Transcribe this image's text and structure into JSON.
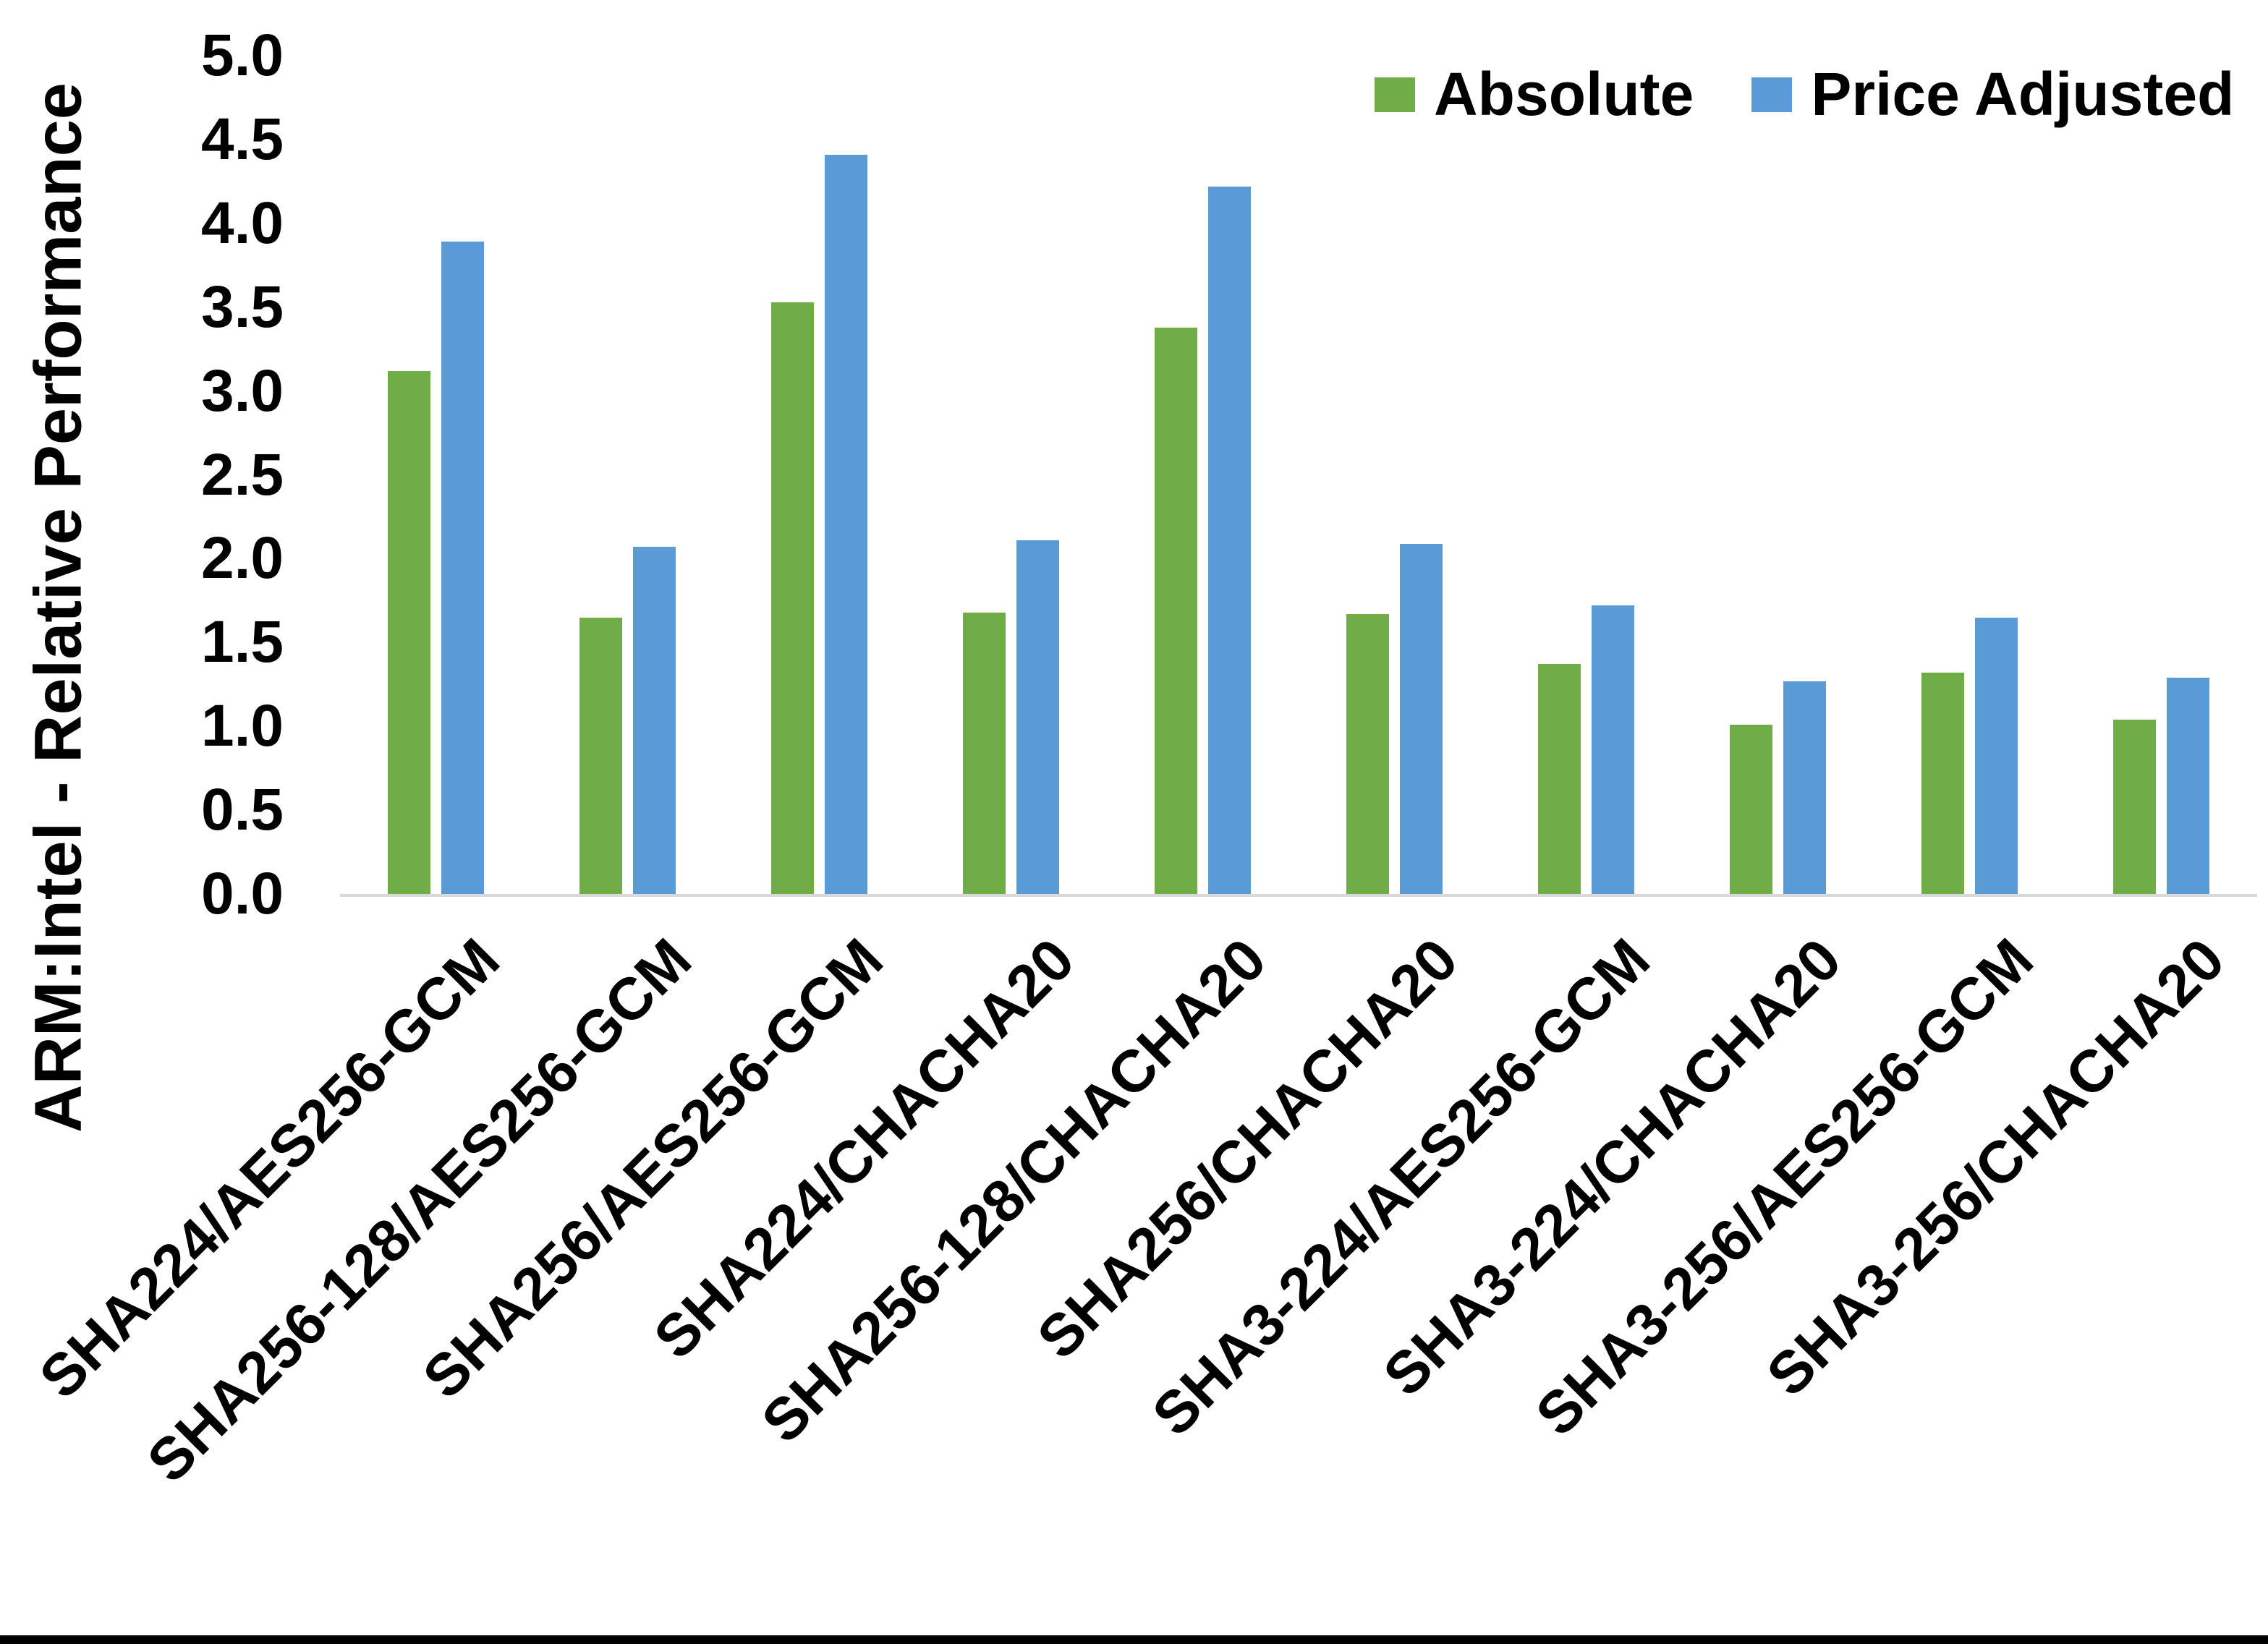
{
  "chart_data": {
    "type": "bar",
    "title": "",
    "xlabel": "",
    "ylabel": "ARM:Intel - Relative Performance",
    "ylim": [
      0,
      5
    ],
    "ytick_step": 0.5,
    "ytick_labels": [
      "0.0",
      "0.5",
      "1.0",
      "1.5",
      "2.0",
      "2.5",
      "3.0",
      "3.5",
      "4.0",
      "4.5",
      "5.0"
    ],
    "grid": false,
    "legend_position": "top-right",
    "axis_line_color": "#D9D9D9",
    "text_color": "#000000",
    "categories": [
      "SHA224/AES256-GCM",
      "SHA256-128/AES256-GCM",
      "SHA256/AES256-GCM",
      "SHA224/CHACHA20",
      "SHA256-128/CHACHA20",
      "SHA256/CHACHA20",
      "SHA3-224/AES256-GCM",
      "SHA3-224/CHACHA20",
      "SHA3-256/AES256-GCM",
      "SHA3-256/CHACHA20"
    ],
    "series": [
      {
        "name": "Absolute",
        "color": "#70AD47",
        "values": [
          3.12,
          1.65,
          3.53,
          1.68,
          3.38,
          1.67,
          1.37,
          1.01,
          1.32,
          1.04
        ]
      },
      {
        "name": "Price Adjusted",
        "color": "#5B9BD5",
        "values": [
          3.89,
          2.07,
          4.41,
          2.11,
          4.22,
          2.09,
          1.72,
          1.27,
          1.65,
          1.29
        ]
      }
    ]
  }
}
